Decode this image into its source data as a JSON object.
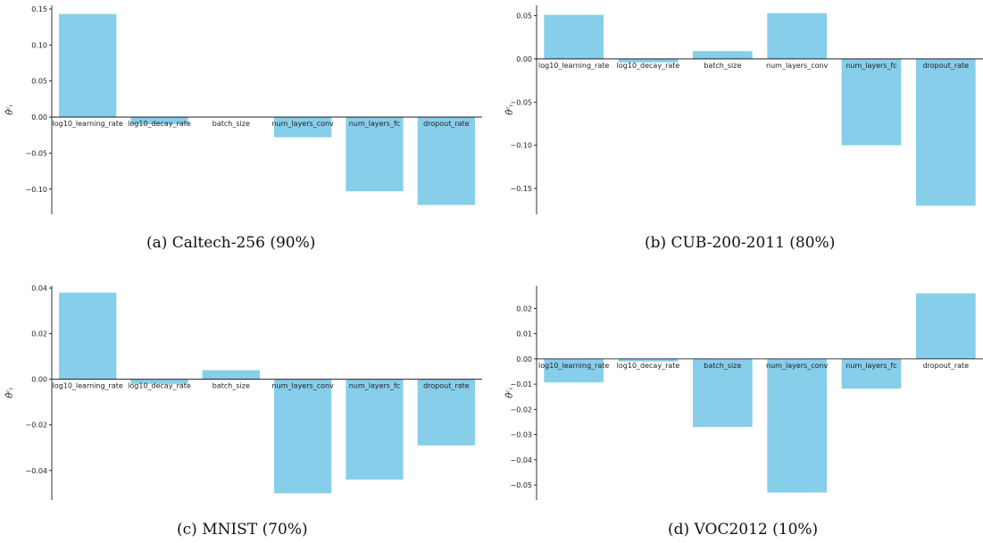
{
  "colors": {
    "bar": "#87CEEB",
    "axis": "#000000"
  },
  "ylabel": "θ̂ᶜᵢ",
  "chart_data": [
    {
      "id": "a",
      "type": "bar",
      "caption": "(a)  Caltech-256 (90%)",
      "categories": [
        "log10_learning_rate",
        "log10_decay_rate",
        "batch_size",
        "num_layers_conv",
        "num_layers_fc",
        "dropout_rate"
      ],
      "values": [
        0.143,
        -0.01,
        0.0,
        -0.028,
        -0.103,
        -0.122
      ],
      "ylim": [
        -0.135,
        0.155
      ],
      "yticks": [
        0.15,
        0.1,
        0.05,
        0.0,
        -0.05,
        -0.1
      ],
      "ytick_labels": [
        "0.15",
        "0.10",
        "0.05",
        "0.00",
        "−0.05",
        "−0.10"
      ],
      "grid": false
    },
    {
      "id": "b",
      "type": "bar",
      "caption": "(b)  CUB-200-2011 (80%)",
      "categories": [
        "log10_learning_rate",
        "log10_decay_rate",
        "batch_size",
        "num_layers_conv",
        "num_layers_fc",
        "dropout_rate"
      ],
      "values": [
        0.051,
        -0.004,
        0.009,
        0.053,
        -0.1,
        -0.17
      ],
      "ylim": [
        -0.18,
        0.062
      ],
      "yticks": [
        0.05,
        0.0,
        -0.05,
        -0.1,
        -0.15
      ],
      "ytick_labels": [
        "0.05",
        "0.00",
        "−0.05",
        "−0.10",
        "−0.15"
      ],
      "grid": false
    },
    {
      "id": "c",
      "type": "bar",
      "caption": "(c)  MNIST (70%)",
      "categories": [
        "log10_learning_rate",
        "log10_decay_rate",
        "batch_size",
        "num_layers_conv",
        "num_layers_fc",
        "dropout_rate"
      ],
      "values": [
        0.038,
        -0.002,
        0.004,
        -0.05,
        -0.044,
        -0.029
      ],
      "ylim": [
        -0.053,
        0.041
      ],
      "yticks": [
        0.04,
        0.02,
        0.0,
        -0.02,
        -0.04
      ],
      "ytick_labels": [
        "0.04",
        "0.02",
        "0.00",
        "−0.02",
        "−0.04"
      ],
      "grid": false
    },
    {
      "id": "d",
      "type": "bar",
      "caption": "(d)  VOC2012 (10%)",
      "categories": [
        "log10_learning_rate",
        "log10_decay_rate",
        "batch_size",
        "num_layers_conv",
        "num_layers_fc",
        "dropout_rate"
      ],
      "values": [
        -0.0093,
        -0.001,
        -0.027,
        -0.053,
        -0.0118,
        0.026
      ],
      "ylim": [
        -0.056,
        0.029
      ],
      "yticks": [
        0.02,
        0.01,
        0.0,
        -0.01,
        -0.02,
        -0.03,
        -0.04,
        -0.05
      ],
      "ytick_labels": [
        "0.02",
        "0.01",
        "0.00",
        "−0.01",
        "−0.02",
        "−0.03",
        "−0.04",
        "−0.05"
      ],
      "grid": false
    }
  ]
}
